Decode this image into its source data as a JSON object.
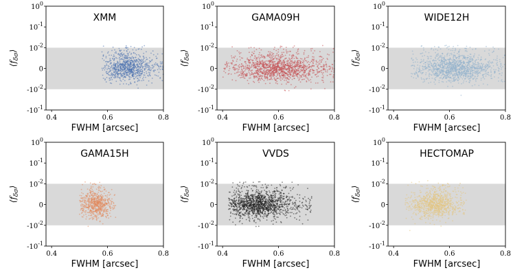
{
  "chart_data": [
    {
      "type": "scatter",
      "title": "XMM",
      "xlabel": "FWHM [arcsec]",
      "ylabel": "⟨f_δσ⟩",
      "yscale": "symlog",
      "xlim": [
        0.38,
        0.8
      ],
      "ylim": [
        -0.1,
        1
      ],
      "xticks": [
        "0.4",
        "0.6",
        "0.8"
      ],
      "yticks": [
        "10^0",
        "10^-1",
        "10^-2",
        "0",
        "-10^-2",
        "-10^-1"
      ],
      "shaded_band": [
        -0.01,
        0.01
      ],
      "color": "#4c72b0",
      "points": {
        "x_range": [
          0.58,
          0.8
        ],
        "x_center": 0.67,
        "n": 900
      }
    },
    {
      "type": "scatter",
      "title": "GAMA09H",
      "xlabel": "FWHM [arcsec]",
      "ylabel": "⟨f_δσ⟩",
      "yscale": "symlog",
      "xlim": [
        0.38,
        0.8
      ],
      "ylim": [
        -0.1,
        1
      ],
      "xticks": [
        "0.4",
        "0.6",
        "0.8"
      ],
      "yticks": [
        "10^0",
        "10^-1",
        "10^-2",
        "0",
        "-10^-2",
        "-10^-1"
      ],
      "shaded_band": [
        -0.01,
        0.01
      ],
      "color": "#c44e52",
      "points": {
        "x_range": [
          0.4,
          0.8
        ],
        "x_center": 0.6,
        "n": 1400
      }
    },
    {
      "type": "scatter",
      "title": "WIDE12H",
      "xlabel": "FWHM [arcsec]",
      "ylabel": "⟨f_δσ⟩",
      "yscale": "symlog",
      "xlim": [
        0.38,
        0.8
      ],
      "ylim": [
        -0.1,
        1
      ],
      "xticks": [
        "0.4",
        "0.6",
        "0.8"
      ],
      "yticks": [
        "10^0",
        "10^-1",
        "10^-2",
        "0",
        "-10^-2",
        "-10^-1"
      ],
      "shaded_band": [
        -0.01,
        0.01
      ],
      "color": "#8fb1cc",
      "points": {
        "x_range": [
          0.46,
          0.8
        ],
        "x_center": 0.62,
        "n": 1300
      }
    },
    {
      "type": "scatter",
      "title": "GAMA15H",
      "xlabel": "FWHM [arcsec]",
      "ylabel": "⟨f_δσ⟩",
      "yscale": "symlog",
      "xlim": [
        0.38,
        0.8
      ],
      "ylim": [
        -0.1,
        1
      ],
      "xticks": [
        "0.4",
        "0.6",
        "0.8"
      ],
      "yticks": [
        "10^0",
        "10^-1",
        "10^-2",
        "0",
        "-10^-2",
        "-10^-1"
      ],
      "shaded_band": [
        -0.01,
        0.01
      ],
      "color": "#e28a5f",
      "points": {
        "x_range": [
          0.5,
          0.63
        ],
        "x_center": 0.56,
        "n": 700
      }
    },
    {
      "type": "scatter",
      "title": "VVDS",
      "xlabel": "FWHM [arcsec]",
      "ylabel": "⟨f_δσ⟩",
      "yscale": "symlog",
      "xlim": [
        0.38,
        0.8
      ],
      "ylim": [
        -0.1,
        1
      ],
      "xticks": [
        "0.4",
        "0.6",
        "0.8"
      ],
      "yticks": [
        "10^0",
        "10^-1",
        "10^-2",
        "0",
        "-10^-2",
        "-10^-1"
      ],
      "shaded_band": [
        -0.01,
        0.01
      ],
      "color": "#1e1e1e",
      "points": {
        "x_range": [
          0.42,
          0.72
        ],
        "x_center": 0.53,
        "n": 1400
      }
    },
    {
      "type": "scatter",
      "title": "HECTOMAP",
      "xlabel": "FWHM [arcsec]",
      "ylabel": "⟨f_δσ⟩",
      "yscale": "symlog",
      "xlim": [
        0.38,
        0.8
      ],
      "ylim": [
        -0.1,
        1
      ],
      "xticks": [
        "0.4",
        "0.6",
        "0.8"
      ],
      "yticks": [
        "10^0",
        "10^-1",
        "10^-2",
        "0",
        "-10^-2",
        "-10^-1"
      ],
      "shaded_band": [
        -0.01,
        0.01
      ],
      "color": "#e3c47e",
      "points": {
        "x_range": [
          0.44,
          0.66
        ],
        "x_center": 0.55,
        "n": 900
      }
    }
  ]
}
